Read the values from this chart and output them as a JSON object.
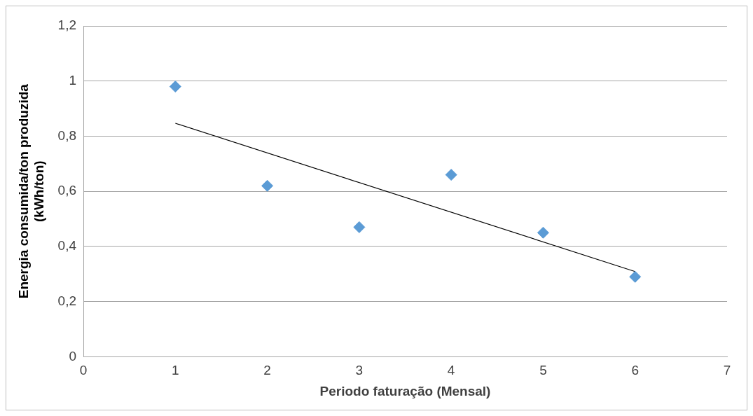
{
  "chart_data": {
    "type": "scatter",
    "xlabel": "Periodo faturação (Mensal)",
    "ylabel": "Energia consumida/ton produzida\n(kWh/ton)",
    "xlim": [
      0,
      7
    ],
    "xticks": [
      0,
      1,
      2,
      3,
      4,
      5,
      6,
      7
    ],
    "ylim": [
      0,
      1.2
    ],
    "yticks": [
      0,
      {
        "value": 0.2,
        "label": "0,2"
      },
      {
        "value": 0.4,
        "label": "0,4"
      },
      {
        "value": 0.6,
        "label": "0,6"
      },
      {
        "value": 0.8,
        "label": "0,8"
      },
      1,
      {
        "value": 1.2,
        "label": "1,2"
      }
    ],
    "grid": "y",
    "legend": false,
    "series": [
      {
        "marker": "diamond",
        "color": "#5b9bd5",
        "x": [
          1,
          2,
          3,
          4,
          5,
          6
        ],
        "values": [
          0.98,
          0.62,
          0.47,
          0.66,
          0.45,
          0.29
        ]
      },
      {
        "type": "line",
        "color": "#000000",
        "x": [
          1,
          6
        ],
        "values": [
          0.847,
          0.309
        ]
      }
    ]
  }
}
